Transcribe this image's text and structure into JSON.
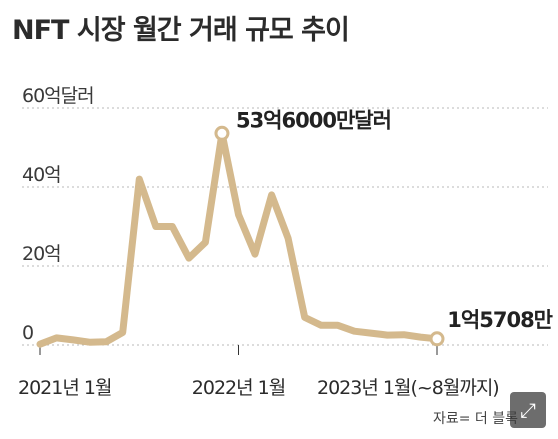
{
  "title": "NFT 시장 월간 거래 규모 추이",
  "source": "자료= 더 블록",
  "expand_icon": "expand-icon",
  "chart_data": {
    "type": "line",
    "title": "NFT 시장 월간 거래 규모 추이",
    "ylim": [
      0,
      60
    ],
    "yticks": [
      "0",
      "20억",
      "40억",
      "60억달러"
    ],
    "ytick_values": [
      0,
      20,
      40,
      60
    ],
    "xticks": [
      "2021년 1월",
      "2022년 1월",
      "2023년 1월(~8월까지)"
    ],
    "xtick_indices": [
      0,
      12,
      24
    ],
    "grid": true,
    "line_color": "#d4b98d",
    "series": [
      {
        "values": [
          0.2,
          1.8,
          1.3,
          0.7,
          0.8,
          3.2,
          42,
          30,
          30,
          22,
          26,
          53.6,
          33,
          23,
          38,
          27,
          7,
          5,
          5,
          3.5,
          3,
          2.5,
          2.6,
          2.0,
          1.57
        ]
      }
    ],
    "annotations": [
      {
        "index": 11,
        "text": "53억6000만달러"
      },
      {
        "index": 24,
        "text": "1억5708만"
      }
    ]
  }
}
